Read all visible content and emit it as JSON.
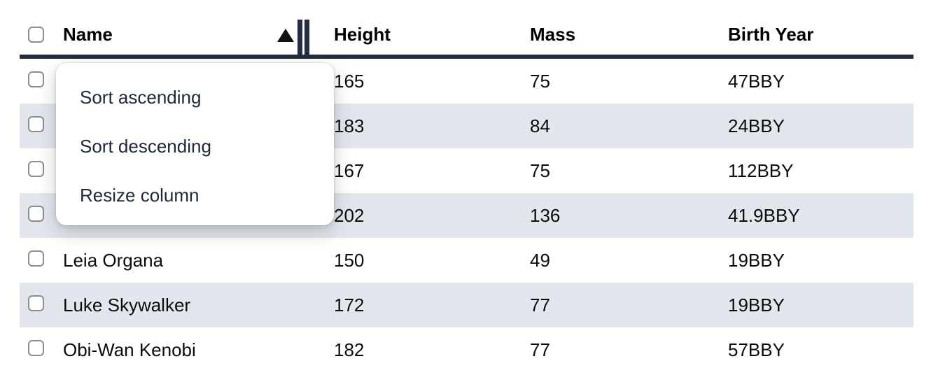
{
  "table": {
    "columns": [
      {
        "label": "Name",
        "sort_indicator": "ascending",
        "resizing": true
      },
      {
        "label": "Height"
      },
      {
        "label": "Mass"
      },
      {
        "label": "Birth Year"
      }
    ],
    "rows": [
      {
        "name": "",
        "height": "165",
        "mass": "75",
        "birth_year": "47BBY"
      },
      {
        "name": "",
        "height": "183",
        "mass": "84",
        "birth_year": "24BBY"
      },
      {
        "name": "",
        "height": "167",
        "mass": "75",
        "birth_year": "112BBY"
      },
      {
        "name": "",
        "height": "202",
        "mass": "136",
        "birth_year": "41.9BBY"
      },
      {
        "name": "Leia Organa",
        "height": "150",
        "mass": "49",
        "birth_year": "19BBY"
      },
      {
        "name": "Luke Skywalker",
        "height": "172",
        "mass": "77",
        "birth_year": "19BBY"
      },
      {
        "name": "Obi-Wan Kenobi",
        "height": "182",
        "mass": "77",
        "birth_year": "57BBY"
      }
    ]
  },
  "context_menu": {
    "items": [
      "Sort ascending",
      "Sort descending",
      "Resize column"
    ]
  },
  "colors": {
    "header_border": "#222d40",
    "stripe": "#e2e7ee",
    "text": "#0b0b0c",
    "menu_text": "#1d2939",
    "handle": "#242f44",
    "checkbox_border": "#8b8d91",
    "triangle": "#111111",
    "menu_bg": "#ffffff",
    "page_bg": "#ffffff"
  }
}
